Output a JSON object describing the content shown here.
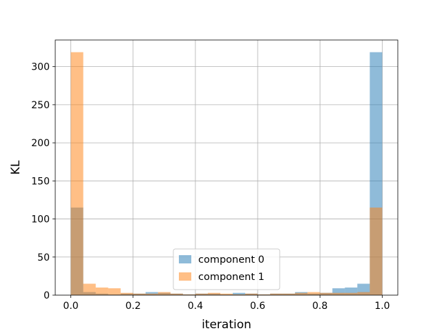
{
  "chart_data": {
    "type": "bar",
    "subtype": "histogram-overlay",
    "title": "",
    "xlabel": "iteration",
    "ylabel": "KL",
    "xlim": [
      -0.05,
      1.05
    ],
    "ylim": [
      0,
      335
    ],
    "xticks": [
      0.0,
      0.2,
      0.4,
      0.6,
      0.8,
      1.0
    ],
    "xtick_labels": [
      "0.0",
      "0.2",
      "0.4",
      "0.6",
      "0.8",
      "1.0"
    ],
    "yticks": [
      0,
      50,
      100,
      150,
      200,
      250,
      300
    ],
    "ytick_labels": [
      "0",
      "50",
      "100",
      "150",
      "200",
      "250",
      "300"
    ],
    "grid": true,
    "legend_position": "lower-center",
    "bins": {
      "start": 0.0,
      "width": 0.04,
      "count": 25
    },
    "series": [
      {
        "name": "component 0",
        "color": "#1f77b4",
        "opacity": 0.5,
        "values": [
          115,
          4,
          2,
          1,
          2,
          2,
          4,
          3,
          2,
          1,
          2,
          2,
          1,
          3,
          2,
          1,
          2,
          2,
          4,
          2,
          3,
          9,
          10,
          15,
          319
        ]
      },
      {
        "name": "component 1",
        "color": "#ff7f0e",
        "opacity": 0.5,
        "values": [
          319,
          15,
          10,
          9,
          3,
          2,
          2,
          4,
          2,
          1,
          2,
          3,
          2,
          1,
          2,
          1,
          2,
          2,
          3,
          4,
          3,
          3,
          3,
          4,
          115
        ]
      }
    ]
  }
}
